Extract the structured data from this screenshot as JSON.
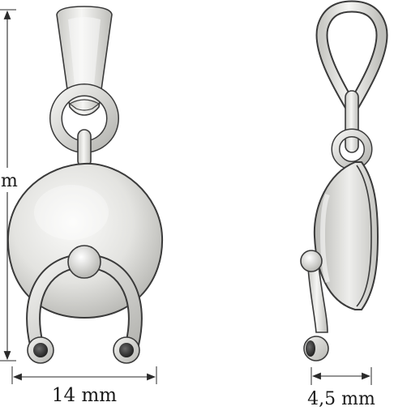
{
  "drawing": {
    "front_view": {
      "height_label": "m",
      "width_label": "14 mm"
    },
    "side_view": {
      "thickness_label": "4,5 mm"
    }
  },
  "colors": {
    "line": "#3a3a3a",
    "metal_light": "#f4f4f2",
    "metal_mid": "#d9d9d6",
    "metal_dark": "#9e9e9a",
    "stone": "#2e2e2e"
  }
}
